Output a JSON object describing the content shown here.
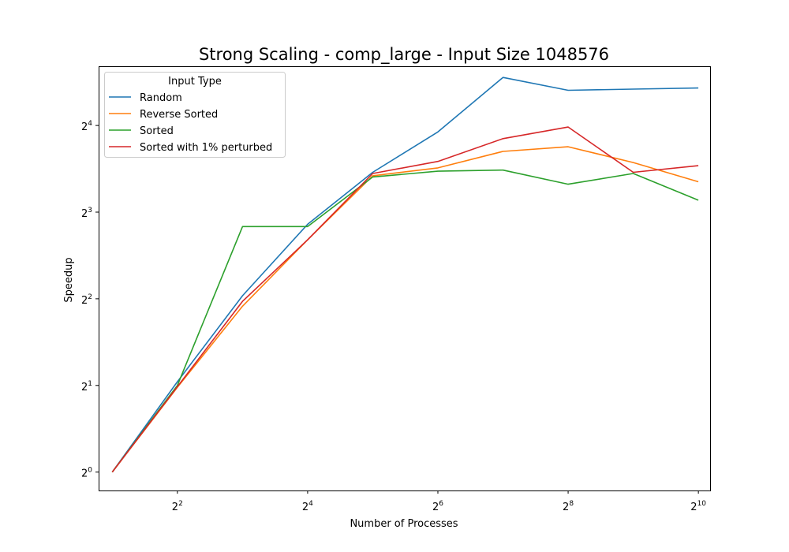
{
  "chart_data": {
    "type": "line",
    "title": "Strong Scaling - comp_large - Input Size 1048576",
    "xlabel": "Number of Processes",
    "ylabel": "Speedup",
    "xscale": "log2",
    "yscale": "log2",
    "x": [
      2,
      4,
      8,
      16,
      32,
      64,
      128,
      256,
      512,
      1024
    ],
    "xticks": [
      {
        "value": 4,
        "base": "2",
        "exp": "2"
      },
      {
        "value": 16,
        "base": "2",
        "exp": "4"
      },
      {
        "value": 64,
        "base": "2",
        "exp": "6"
      },
      {
        "value": 256,
        "base": "2",
        "exp": "8"
      },
      {
        "value": 1024,
        "base": "2",
        "exp": "10"
      }
    ],
    "yticks": [
      {
        "value": 1,
        "base": "2",
        "exp": "0"
      },
      {
        "value": 2,
        "base": "2",
        "exp": "1"
      },
      {
        "value": 4,
        "base": "2",
        "exp": "2"
      },
      {
        "value": 8,
        "base": "2",
        "exp": "3"
      },
      {
        "value": 16,
        "base": "2",
        "exp": "4"
      }
    ],
    "xlim": [
      1.73,
      1160
    ],
    "ylim": [
      0.863,
      25.7
    ],
    "grid": false,
    "legend": {
      "title": "Input Type",
      "placement": "top-left"
    },
    "series": [
      {
        "name": "Random",
        "color": "#1f77b4",
        "values": [
          1.0,
          2.06,
          4.1,
          7.26,
          11.0,
          15.2,
          23.5,
          21.2,
          21.4,
          21.6
        ]
      },
      {
        "name": "Reverse Sorted",
        "color": "#ff7f0e",
        "values": [
          1.0,
          1.97,
          3.77,
          6.41,
          10.7,
          11.4,
          13.0,
          13.5,
          11.9,
          10.2
        ]
      },
      {
        "name": "Sorted",
        "color": "#2ca02c",
        "values": [
          1.0,
          2.0,
          7.13,
          7.13,
          10.6,
          11.1,
          11.2,
          10.0,
          10.9,
          8.8
        ]
      },
      {
        "name": "Sorted with 1% perturbed",
        "color": "#d62728",
        "values": [
          1.0,
          1.98,
          3.92,
          6.41,
          10.9,
          12.0,
          14.4,
          15.8,
          11.0,
          11.6
        ]
      }
    ]
  }
}
